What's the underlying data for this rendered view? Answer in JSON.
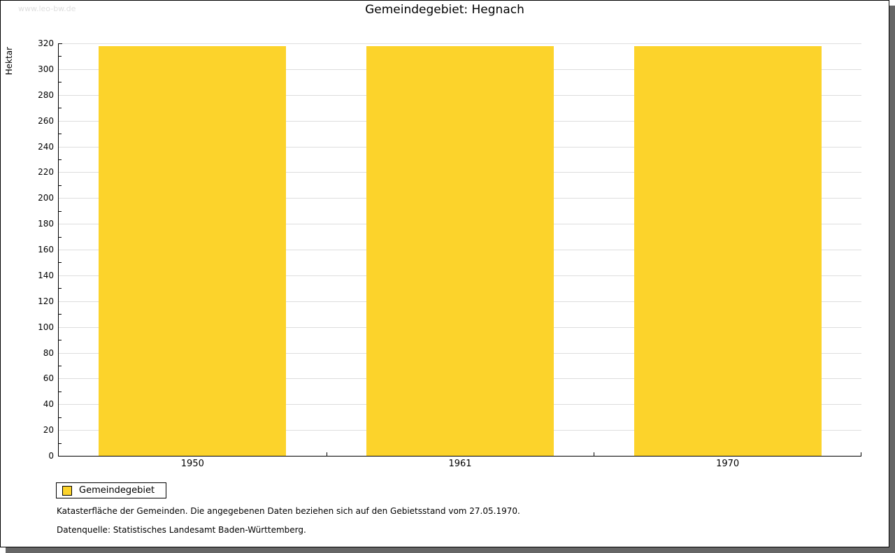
{
  "watermark": "www.leo-bw.de",
  "title": "Gemeindegebiet: Hegnach",
  "chart_data": {
    "type": "bar",
    "title": "Gemeindegebiet: Hegnach",
    "categories": [
      "1950",
      "1961",
      "1970"
    ],
    "series": [
      {
        "name": "Gemeindegebiet",
        "values": [
          318,
          318,
          318
        ]
      }
    ],
    "xlabel": "",
    "ylabel": "Hektar",
    "ylim": [
      0,
      320
    ],
    "ytick_step": 20,
    "yminor_step": 10,
    "grid": true,
    "bar_color": "#FCD32B",
    "grid_color": "#dddddd",
    "legend_position": "bottom-left"
  },
  "legend": {
    "items": [
      {
        "label": "Gemeindegebiet",
        "color": "#FCD32B"
      }
    ]
  },
  "footer": {
    "line1": "Katasterfläche der Gemeinden. Die angegebenen Daten beziehen sich auf den Gebietsstand vom 27.05.1970.",
    "line2": "Datenquelle: Statistisches Landesamt Baden-Württemberg."
  }
}
